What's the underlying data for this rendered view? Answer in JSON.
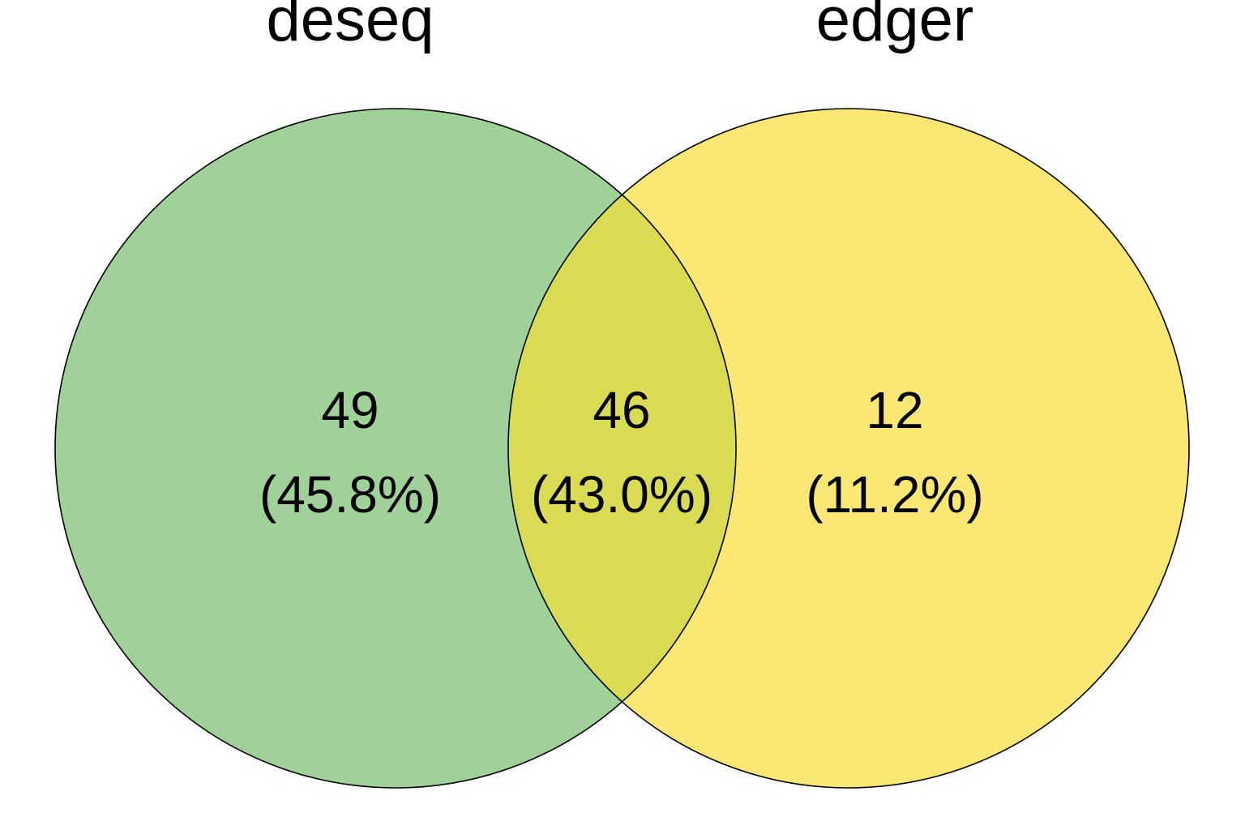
{
  "venn": {
    "sets": [
      {
        "name": "deseq",
        "color": "#7dc274"
      },
      {
        "name": "edger",
        "color": "#fade30"
      }
    ],
    "regions": {
      "deseq_only": {
        "count": "49",
        "percent": "(45.8%)"
      },
      "intersection": {
        "count": "46",
        "percent": "(43.0%)"
      },
      "edger_only": {
        "count": "12",
        "percent": "(11.2%)"
      }
    },
    "intersection_color": "#d6d84d"
  }
}
